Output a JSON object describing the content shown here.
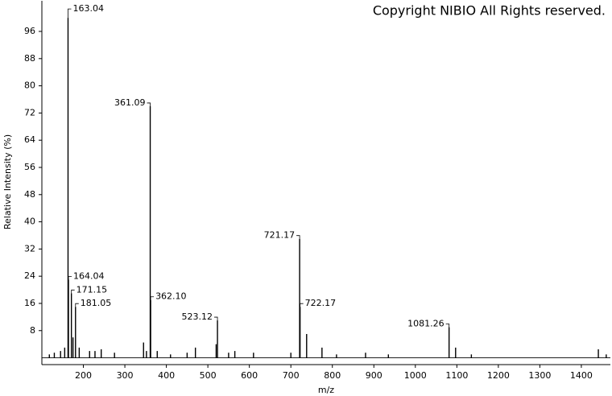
{
  "chart_data": {
    "type": "stem",
    "annotation": "Copyright NIBIO All Rights reserved.",
    "x_label": "m/z",
    "y_label": "Relative Intensity (%)",
    "xlim": [
      100,
      1470
    ],
    "xticks": [
      200,
      300,
      400,
      500,
      600,
      700,
      800,
      900,
      1000,
      1100,
      1200,
      1300,
      1400
    ],
    "ylim": [
      -2,
      105
    ],
    "yticks": [
      8,
      16,
      24,
      32,
      40,
      48,
      56,
      64,
      72,
      80,
      88,
      96
    ],
    "color": "#000000",
    "series": [
      {
        "x": [
          163.04,
          164.04,
          171.15,
          181.05,
          361.09,
          362.1,
          523.12,
          721.17,
          722.17,
          1081.26
        ],
        "x_labels": [
          "163.04",
          "164.04",
          "171.15",
          "181.05",
          "361.09",
          "362.10",
          "523.12",
          "721.17",
          "722.17",
          "1081.26"
        ],
        "values": [
          100,
          23,
          19,
          15,
          74,
          17,
          11,
          35,
          15,
          9
        ]
      },
      {
        "x": [
          118,
          130,
          145,
          155,
          175,
          190,
          215,
          228,
          243,
          275,
          345,
          352,
          378,
          410,
          450,
          470,
          520,
          550,
          565,
          610,
          700,
          738,
          775,
          810,
          880,
          935,
          1097,
          1135,
          1441,
          1460
        ],
        "values": [
          1,
          1.5,
          2,
          3,
          6,
          3,
          2,
          2,
          2.5,
          1.5,
          4.5,
          2,
          2,
          1,
          1.5,
          3,
          4,
          1.5,
          2,
          1.5,
          1.5,
          7,
          3,
          1,
          1.5,
          1,
          3,
          1,
          2.5,
          1
        ]
      }
    ]
  }
}
